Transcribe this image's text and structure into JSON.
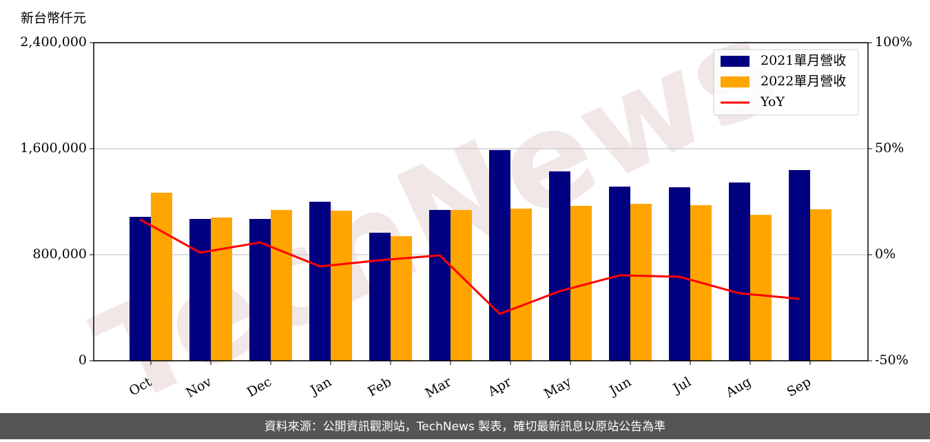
{
  "chart_data": {
    "type": "bar",
    "y_label": "新台幣仟元",
    "categories": [
      "Oct",
      "Nov",
      "Dec",
      "Jan",
      "Feb",
      "Mar",
      "Apr",
      "May",
      "Jun",
      "Jul",
      "Aug",
      "Sep"
    ],
    "series": [
      {
        "name": "2021單月營收",
        "color": "#000080",
        "values": [
          1086000,
          1070000,
          1070000,
          1200000,
          966000,
          1138000,
          1590000,
          1429000,
          1314000,
          1309000,
          1345000,
          1439000
        ]
      },
      {
        "name": "2022單月營收",
        "color": "#ffa500",
        "values": [
          1268000,
          1081000,
          1138000,
          1132000,
          940000,
          1138000,
          1148000,
          1169000,
          1184000,
          1174000,
          1101000,
          1143000
        ]
      },
      {
        "name": "YoY",
        "color": "#ff0000",
        "type": "line",
        "axis": "y2",
        "values": [
          16.6,
          1.0,
          5.8,
          -5.5,
          -2.6,
          -0.3,
          -27.9,
          -17.2,
          -9.7,
          -10.4,
          -18.2,
          -20.8
        ]
      }
    ],
    "ylim": [
      0,
      2400000
    ],
    "yticks": [
      0,
      {
        "value": 800000,
        "label": "800,000"
      },
      {
        "value": 1600000,
        "label": "1,600,000"
      },
      {
        "value": 2400000,
        "label": "2,400,000"
      }
    ],
    "y2lim": [
      -50,
      100
    ],
    "y2ticks": [
      {
        "value": -50,
        "label": "-50%"
      },
      {
        "value": 0,
        "label": "0%"
      },
      {
        "value": 50,
        "label": "50%"
      },
      {
        "value": 100,
        "label": "100%"
      }
    ],
    "grid": true,
    "legend": "upper right",
    "watermark": "TechNews",
    "footer": "資料來源：公開資訊觀測站，TechNews 製表，確切最新訊息以原站公告為準"
  }
}
